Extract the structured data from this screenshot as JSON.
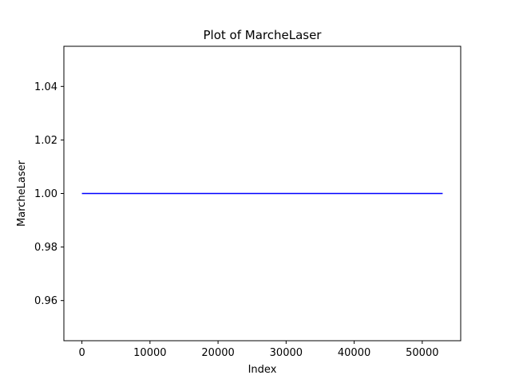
{
  "chart_data": {
    "type": "line",
    "title": "Plot of MarcheLaser",
    "xlabel": "Index",
    "ylabel": "MarcheLaser",
    "xlim": [
      -2650,
      55650
    ],
    "ylim": [
      0.945,
      1.055
    ],
    "x_ticks": [
      0,
      10000,
      20000,
      30000,
      40000,
      50000
    ],
    "y_ticks": [
      0.96,
      0.98,
      1.0,
      1.02,
      1.04
    ],
    "x_tick_labels": [
      "0",
      "10000",
      "20000",
      "30000",
      "40000",
      "50000"
    ],
    "y_tick_labels": [
      "0.96",
      "0.98",
      "1.00",
      "1.02",
      "1.04"
    ],
    "grid": false,
    "series": [
      {
        "color": "#0000ff",
        "x": [
          0,
          53000
        ],
        "y": [
          1.0,
          1.0
        ]
      }
    ]
  }
}
